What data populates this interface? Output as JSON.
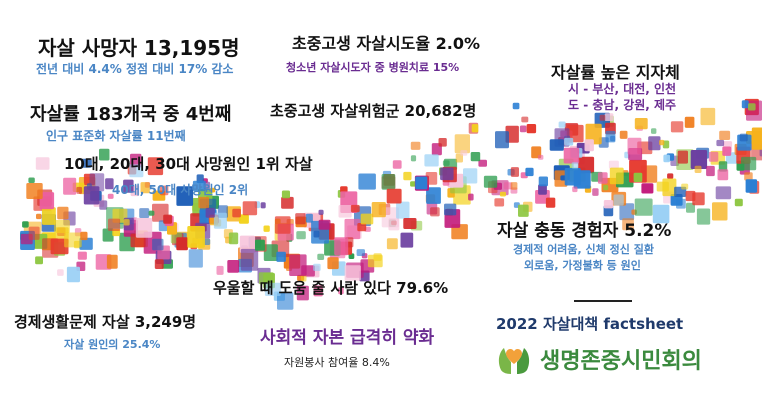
{
  "facts": {
    "deaths_title": "자살 사망자 13,195명",
    "deaths_sub": "전년 대비 4.4% 정점 대비 17% 감소",
    "youth_attempt_title": "초중고생 자살시도율 2.0%",
    "youth_attempt_sub": "청소년 자살시도자 중 병원치료 15%",
    "regions_title": "자살률 높은 지자체",
    "regions_city": "시 - 부산, 대전, 인천",
    "regions_province": "도 - 충남, 강원, 제주",
    "rate_title": "자살률 183개국 중 4번째",
    "rate_sub": "인구 표준화 자살률 11번째",
    "youth_risk_title": "초중고생 자살위험군 20,682명",
    "age_title": "10대, 20대, 30대 사망원인 1위 자살",
    "age_sub": "40대, 50대 사망원인 2위",
    "impulse_title": "자살 충동 경험자 5.2%",
    "impulse_sub1": "경제적 어려움, 신체 정신 질환",
    "impulse_sub2": "외로움, 가정불화 등 원인",
    "helper_title": "우울할 때 도움 줄 사람 있다 79.6%",
    "economic_title": "경제생활문제 자살 3,249명",
    "economic_sub": "자살 원인의 25.4%",
    "social_title": "사회적 자본 급격히 약화",
    "social_sub": "자원봉사 참여율 8.4%"
  },
  "branding": {
    "factsheet": "2022 자살대책 factsheet",
    "org_name": "생명존중시민회의",
    "logo_icon": "hands-heart-icon"
  },
  "colors": {
    "title": "#111111",
    "subtitle_blue": "#4a86c5",
    "subtitle_purple": "#6a2c91",
    "factsheet": "#1f3a6b",
    "org_green": "#3b8a3e"
  }
}
